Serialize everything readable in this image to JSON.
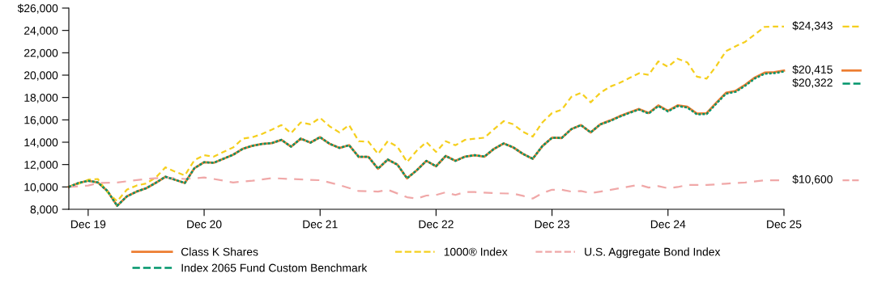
{
  "chart_data": {
    "type": "line",
    "x": [
      "2019-10",
      "2019-11",
      "2019-12",
      "2020-01",
      "2020-02",
      "2020-03",
      "2020-04",
      "2020-05",
      "2020-06",
      "2020-07",
      "2020-08",
      "2020-09",
      "2020-10",
      "2020-11",
      "2020-12",
      "2021-01",
      "2021-02",
      "2021-03",
      "2021-04",
      "2021-05",
      "2021-06",
      "2021-07",
      "2021-08",
      "2021-09",
      "2021-10",
      "2021-11",
      "2021-12",
      "2022-01",
      "2022-02",
      "2022-03",
      "2022-04",
      "2022-05",
      "2022-06",
      "2022-07",
      "2022-08",
      "2022-09",
      "2022-10",
      "2022-11",
      "2022-12",
      "2023-01",
      "2023-02",
      "2023-03",
      "2023-04",
      "2023-05",
      "2023-06",
      "2023-07",
      "2023-08",
      "2023-09",
      "2023-10",
      "2023-11",
      "2023-12",
      "2024-01",
      "2024-02",
      "2024-03",
      "2024-04",
      "2024-05",
      "2024-06",
      "2024-07",
      "2024-08",
      "2024-09",
      "2024-10",
      "2024-11",
      "2024-12",
      "2025-01",
      "2025-02",
      "2025-03",
      "2025-04",
      "2025-05",
      "2025-06",
      "2025-07",
      "2025-08",
      "2025-09",
      "2025-10",
      "2025-11",
      "2025-12"
    ],
    "xlim": [
      "2019-10",
      "2025-12"
    ],
    "xticks": [
      {
        "value": "2019-12",
        "label": "Dec 19"
      },
      {
        "value": "2020-12",
        "label": "Dec 20"
      },
      {
        "value": "2021-12",
        "label": "Dec 21"
      },
      {
        "value": "2022-12",
        "label": "Dec 22"
      },
      {
        "value": "2023-12",
        "label": "Dec 23"
      },
      {
        "value": "2024-12",
        "label": "Dec 24"
      },
      {
        "value": "2025-12",
        "label": "Dec 25"
      }
    ],
    "ylim": [
      8000,
      26000
    ],
    "yticks": [
      {
        "value": 8000,
        "label": "8,000"
      },
      {
        "value": 10000,
        "label": "10,000"
      },
      {
        "value": 12000,
        "label": "12,000"
      },
      {
        "value": 14000,
        "label": "14,000"
      },
      {
        "value": 16000,
        "label": "16,000"
      },
      {
        "value": 18000,
        "label": "18,000"
      },
      {
        "value": 20000,
        "label": "20,000"
      },
      {
        "value": 22000,
        "label": "22,000"
      },
      {
        "value": 24000,
        "label": "24,000"
      },
      {
        "value": 26000,
        "label": "$26,000"
      }
    ],
    "grid": false,
    "legend": "bottom",
    "series": [
      {
        "name": "Class K Shares",
        "color": "#ed7d31",
        "line_style": "solid",
        "values": [
          10000,
          10350,
          10550,
          10400,
          9630,
          8310,
          9150,
          9580,
          9880,
          10370,
          10910,
          10640,
          10350,
          11680,
          12210,
          12160,
          12520,
          12880,
          13410,
          13680,
          13850,
          13920,
          14210,
          13600,
          14320,
          13960,
          14450,
          13850,
          13490,
          13730,
          12690,
          12690,
          11630,
          12450,
          11990,
          10770,
          11490,
          12330,
          11850,
          12770,
          12330,
          12710,
          12840,
          12710,
          13410,
          13890,
          13530,
          12950,
          12520,
          13650,
          14400,
          14380,
          15170,
          15530,
          14880,
          15600,
          15940,
          16320,
          16660,
          16970,
          16610,
          17290,
          16810,
          17290,
          17170,
          16560,
          16600,
          17530,
          18420,
          18590,
          19140,
          19790,
          20220,
          20270,
          20415
        ],
        "value_labels": [
          null,
          null,
          null,
          null,
          null,
          null,
          null,
          null,
          null,
          null,
          null,
          null,
          null,
          null,
          null,
          null,
          null,
          null,
          null,
          null,
          null,
          null,
          null,
          null,
          null,
          null,
          null,
          null,
          null,
          null,
          null,
          null,
          null,
          null,
          null,
          null,
          null,
          null,
          null,
          null,
          null,
          null,
          null,
          null,
          null,
          null,
          null,
          null,
          null,
          null,
          null,
          null,
          null,
          null,
          null,
          null,
          null,
          null,
          null,
          null,
          null,
          null,
          null,
          null,
          null,
          null,
          null,
          null,
          null,
          null,
          null,
          null,
          null,
          null,
          "$20,415"
        ]
      },
      {
        "name": "1000® Index",
        "color": "#f5cf1e",
        "line_style": "dashed",
        "values": [
          10000,
          10280,
          10640,
          10710,
          9520,
          8720,
          9750,
          10120,
          10310,
          10840,
          11750,
          11360,
          11030,
          12400,
          12840,
          12710,
          13130,
          13530,
          14320,
          14450,
          14740,
          15120,
          15530,
          14810,
          15770,
          15600,
          16180,
          15410,
          14880,
          15530,
          14090,
          14050,
          12950,
          14090,
          13600,
          12230,
          13240,
          14010,
          13130,
          14090,
          13730,
          14210,
          14320,
          14400,
          15170,
          15890,
          15600,
          14930,
          14500,
          15770,
          16610,
          16900,
          18060,
          18420,
          17570,
          18420,
          18970,
          19310,
          19740,
          20170,
          20030,
          21230,
          20750,
          21470,
          21140,
          19860,
          19690,
          20820,
          22150,
          22580,
          22990,
          23640,
          24320,
          24343,
          24343
        ],
        "value_labels": [
          null,
          null,
          null,
          null,
          null,
          null,
          null,
          null,
          null,
          null,
          null,
          null,
          null,
          null,
          null,
          null,
          null,
          null,
          null,
          null,
          null,
          null,
          null,
          null,
          null,
          null,
          null,
          null,
          null,
          null,
          null,
          null,
          null,
          null,
          null,
          null,
          null,
          null,
          null,
          null,
          null,
          null,
          null,
          null,
          null,
          null,
          null,
          null,
          null,
          null,
          null,
          null,
          null,
          null,
          null,
          null,
          null,
          null,
          null,
          null,
          null,
          null,
          null,
          null,
          null,
          null,
          null,
          null,
          null,
          null,
          null,
          null,
          null,
          null,
          "$24,343"
        ]
      },
      {
        "name": "U.S. Aggregate Bond Index",
        "color": "#f0a8a8",
        "line_style": "longdash",
        "x": [
          "2019-10",
          "2019-12",
          "2020-01",
          "2020-03",
          "2020-06",
          "2020-08",
          "2020-10",
          "2020-12",
          "2021-01",
          "2021-03",
          "2021-05",
          "2021-07",
          "2021-09",
          "2021-12",
          "2022-02",
          "2022-04",
          "2022-06",
          "2022-07",
          "2022-09",
          "2022-10",
          "2022-11",
          "2022-12",
          "2023-01",
          "2023-02",
          "2023-03",
          "2023-04",
          "2023-06",
          "2023-08",
          "2023-09",
          "2023-10",
          "2023-11",
          "2023-12",
          "2024-01",
          "2024-02",
          "2024-03",
          "2024-04",
          "2024-05",
          "2024-07",
          "2024-09",
          "2024-10",
          "2024-11",
          "2024-12",
          "2025-01",
          "2025-02",
          "2025-04",
          "2025-06",
          "2025-08",
          "2025-10",
          "2025-12"
        ],
        "values": [
          10000,
          10120,
          10350,
          10400,
          10710,
          10840,
          10710,
          10840,
          10710,
          10400,
          10550,
          10790,
          10710,
          10600,
          10170,
          9630,
          9580,
          9750,
          9080,
          8960,
          9230,
          9280,
          9520,
          9280,
          9540,
          9540,
          9440,
          9400,
          9200,
          8960,
          9440,
          9750,
          9750,
          9580,
          9630,
          9440,
          9580,
          9880,
          10190,
          9940,
          10070,
          9880,
          9990,
          10170,
          10170,
          10290,
          10400,
          10600,
          10600
        ],
        "value_labels": [
          null,
          null,
          null,
          null,
          null,
          null,
          null,
          null,
          null,
          null,
          null,
          null,
          null,
          null,
          null,
          null,
          null,
          null,
          null,
          null,
          null,
          null,
          null,
          null,
          null,
          null,
          null,
          null,
          null,
          null,
          null,
          null,
          null,
          null,
          null,
          null,
          null,
          null,
          null,
          null,
          null,
          null,
          null,
          null,
          null,
          null,
          null,
          null,
          "$10,600"
        ]
      },
      {
        "name": "Index 2065 Fund Custom Benchmark",
        "color": "#00956b",
        "line_style": "dotted",
        "values": [
          10000,
          10350,
          10550,
          10400,
          9630,
          8310,
          9150,
          9580,
          9880,
          10370,
          10910,
          10640,
          10350,
          11680,
          12210,
          12160,
          12520,
          12880,
          13410,
          13680,
          13850,
          13920,
          14210,
          13600,
          14320,
          13960,
          14450,
          13850,
          13490,
          13730,
          12690,
          12690,
          11630,
          12450,
          11990,
          10770,
          11490,
          12330,
          11850,
          12770,
          12330,
          12710,
          12840,
          12710,
          13410,
          13890,
          13530,
          12950,
          12520,
          13650,
          14400,
          14380,
          15170,
          15530,
          14880,
          15600,
          15900,
          16280,
          16620,
          16920,
          16560,
          17240,
          16750,
          17230,
          17100,
          16490,
          16520,
          17450,
          18340,
          18510,
          19060,
          19710,
          20130,
          20180,
          20322
        ],
        "value_labels": [
          null,
          null,
          null,
          null,
          null,
          null,
          null,
          null,
          null,
          null,
          null,
          null,
          null,
          null,
          null,
          null,
          null,
          null,
          null,
          null,
          null,
          null,
          null,
          null,
          null,
          null,
          null,
          null,
          null,
          null,
          null,
          null,
          null,
          null,
          null,
          null,
          null,
          null,
          null,
          null,
          null,
          null,
          null,
          null,
          null,
          null,
          null,
          null,
          null,
          null,
          null,
          null,
          null,
          null,
          null,
          null,
          null,
          null,
          null,
          null,
          null,
          null,
          null,
          null,
          null,
          null,
          null,
          null,
          null,
          null,
          null,
          null,
          null,
          null,
          "$20,322"
        ]
      }
    ]
  }
}
